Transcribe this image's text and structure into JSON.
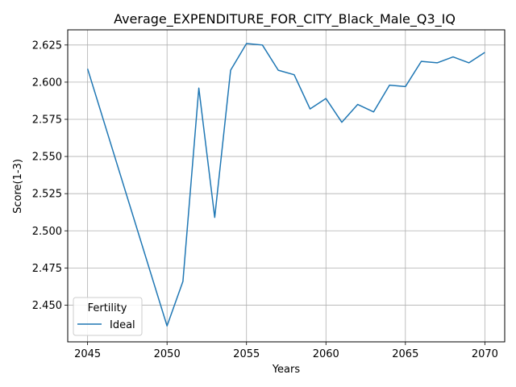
{
  "chart_data": {
    "type": "line",
    "title": "Average_EXPENDITURE_FOR_CITY_Black_Male_Q3_IQ",
    "xlabel": "Years",
    "ylabel": "Score(1-3)",
    "xlim": [
      2043.75,
      2071.25
    ],
    "ylim": [
      2.4253,
      2.6352
    ],
    "xticks": [
      2045,
      2050,
      2055,
      2060,
      2065,
      2070
    ],
    "yticks": [
      2.45,
      2.475,
      2.5,
      2.525,
      2.55,
      2.575,
      2.6,
      2.625
    ],
    "ytick_labels": [
      "2.450",
      "2.475",
      "2.500",
      "2.525",
      "2.550",
      "2.575",
      "2.600",
      "2.625"
    ],
    "grid": true,
    "legend": {
      "title": "Fertility",
      "placement": "lower-left"
    },
    "series": [
      {
        "name": "Ideal",
        "color": "#1f77b4",
        "x": [
          2045,
          2050,
          2051,
          2052,
          2053,
          2054,
          2055,
          2056,
          2057,
          2058,
          2059,
          2060,
          2061,
          2062,
          2063,
          2064,
          2065,
          2066,
          2067,
          2068,
          2069,
          2070
        ],
        "values": [
          2.609,
          2.436,
          2.466,
          2.596,
          2.509,
          2.608,
          2.626,
          2.625,
          2.608,
          2.605,
          2.582,
          2.589,
          2.573,
          2.585,
          2.58,
          2.598,
          2.597,
          2.614,
          2.613,
          2.617,
          2.613,
          2.62
        ]
      }
    ]
  }
}
